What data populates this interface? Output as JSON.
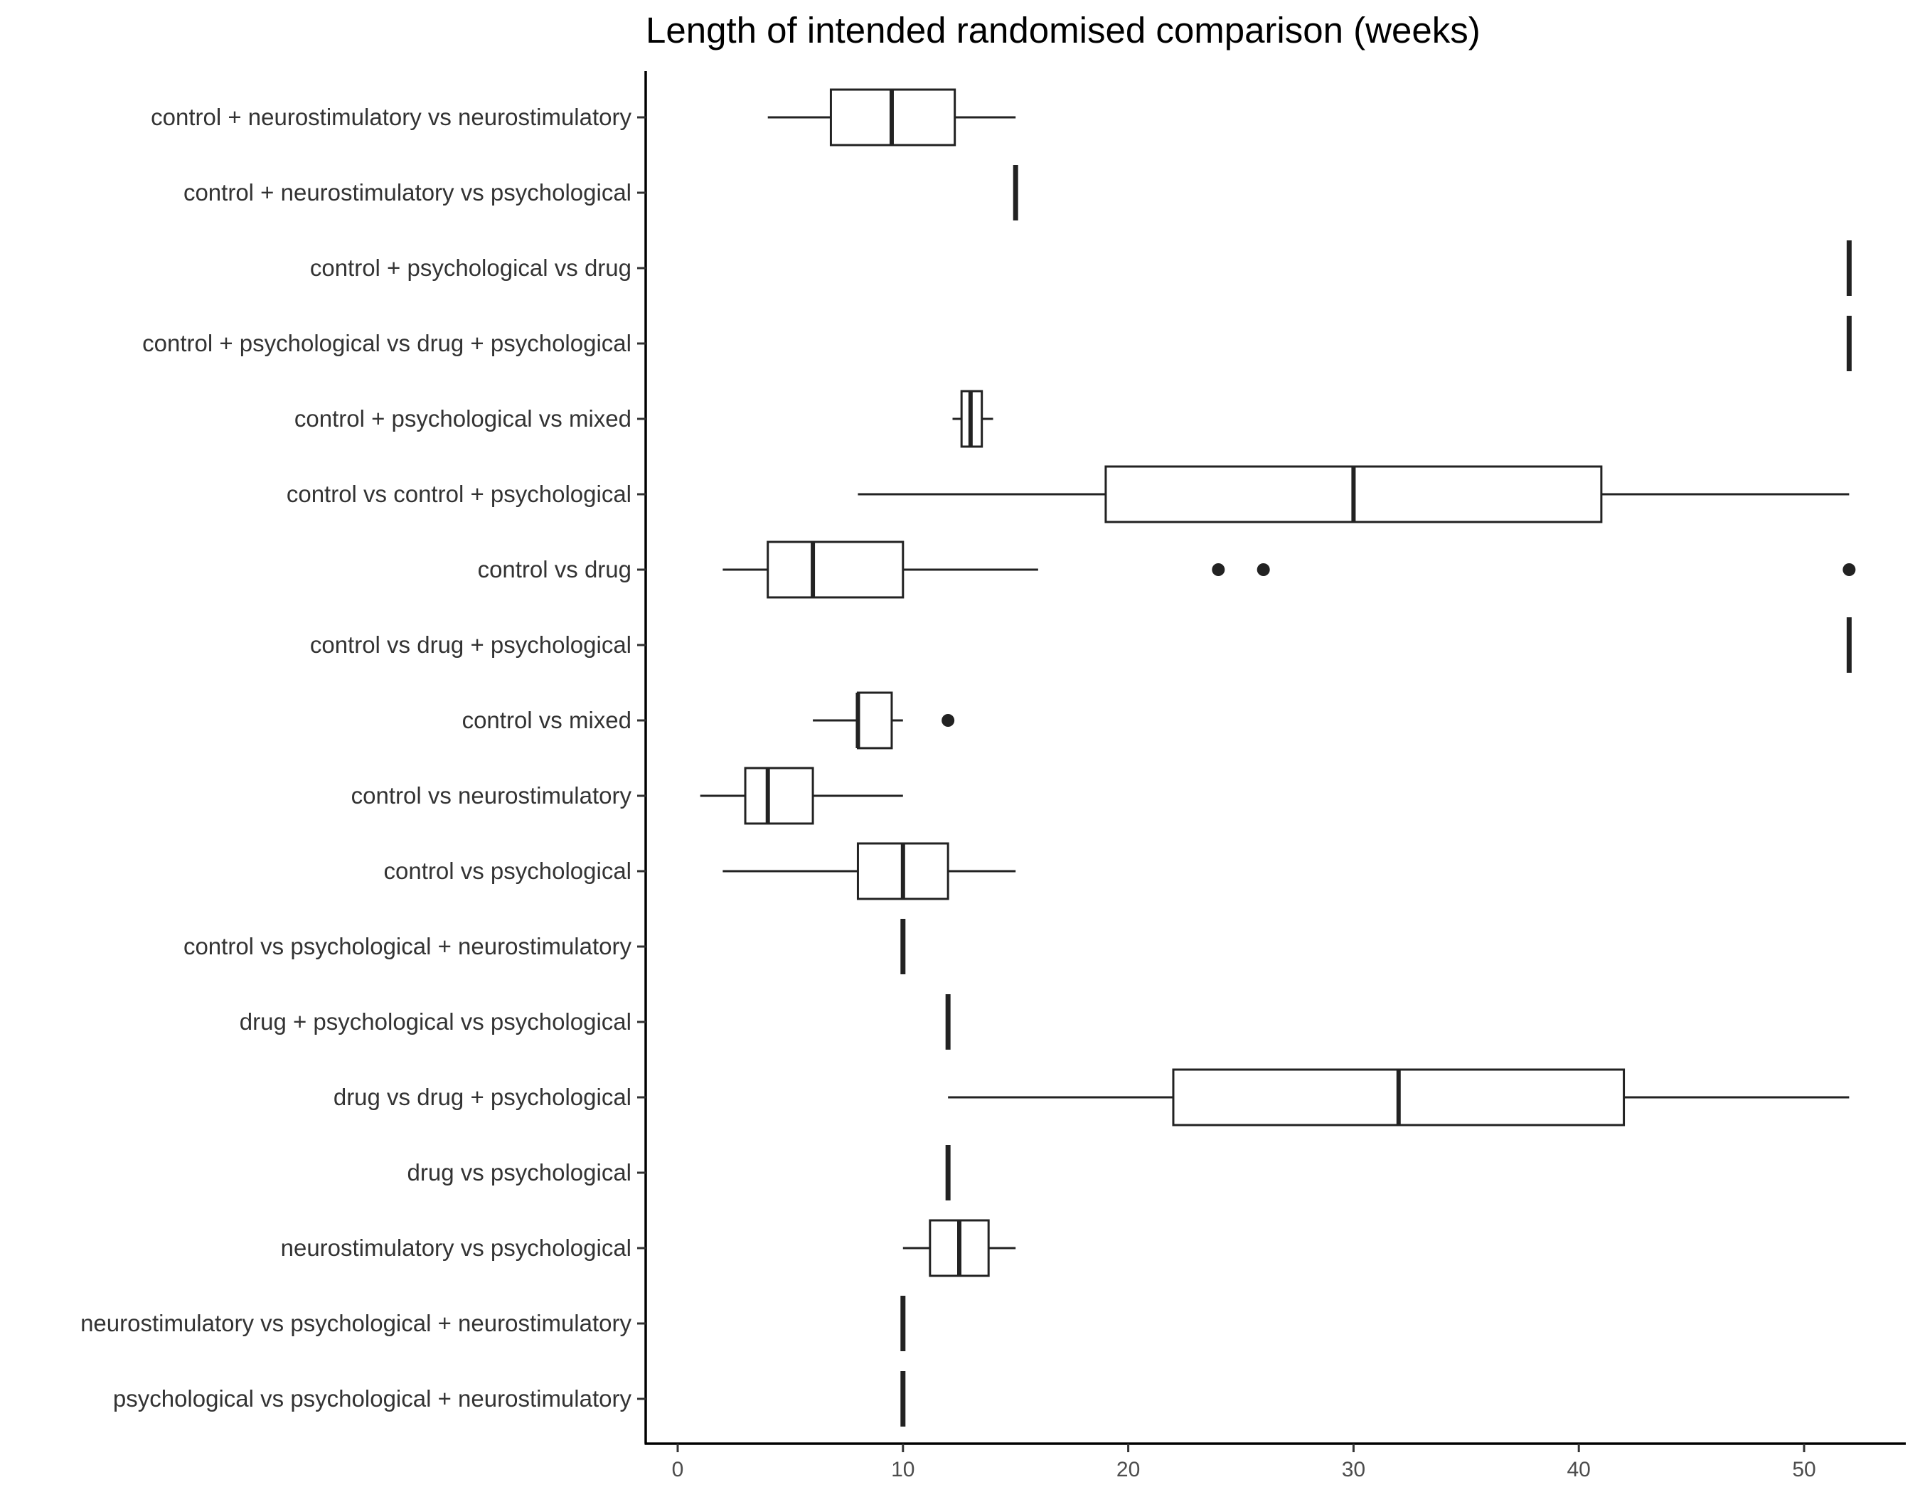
{
  "chart_data": {
    "type": "boxplot",
    "orientation": "horizontal",
    "title": "Length of intended randomised comparison (weeks)",
    "xlabel": "",
    "ylabel": "",
    "xlim": [
      -1.5,
      54.5
    ],
    "xticks": [
      0,
      10,
      20,
      30,
      40,
      50
    ],
    "grid": false,
    "legend": "none",
    "colors": {
      "stroke": "#222222",
      "fill": "#ffffff",
      "axis": "#000000",
      "text": "#333333"
    },
    "categories": [
      "control + neurostimulatory vs neurostimulatory",
      "control + neurostimulatory vs psychological",
      "control + psychological vs drug",
      "control + psychological vs drug + psychological",
      "control + psychological vs mixed",
      "control vs control + psychological",
      "control vs drug",
      "control vs drug + psychological",
      "control vs mixed",
      "control vs neurostimulatory",
      "control vs psychological",
      "control vs psychological + neurostimulatory",
      "drug + psychological vs psychological",
      "drug vs drug + psychological",
      "drug vs psychological",
      "neurostimulatory vs psychological",
      "neurostimulatory vs psychological + neurostimulatory",
      "psychological vs psychological + neurostimulatory"
    ],
    "boxes": [
      {
        "min": 4,
        "q1": 6.8,
        "median": 9.5,
        "q3": 12.3,
        "max": 15,
        "outliers": []
      },
      {
        "min": 15,
        "q1": 15,
        "median": 15,
        "q3": 15,
        "max": 15,
        "outliers": []
      },
      {
        "min": 52,
        "q1": 52,
        "median": 52,
        "q3": 52,
        "max": 52,
        "outliers": []
      },
      {
        "min": 52,
        "q1": 52,
        "median": 52,
        "q3": 52,
        "max": 52,
        "outliers": []
      },
      {
        "min": 12.2,
        "q1": 12.6,
        "median": 13,
        "q3": 13.5,
        "max": 14,
        "outliers": []
      },
      {
        "min": 8,
        "q1": 19,
        "median": 30,
        "q3": 41,
        "max": 52,
        "outliers": []
      },
      {
        "min": 2,
        "q1": 4,
        "median": 6,
        "q3": 10,
        "max": 16,
        "outliers": [
          24,
          26,
          52
        ]
      },
      {
        "min": 52,
        "q1": 52,
        "median": 52,
        "q3": 52,
        "max": 52,
        "outliers": []
      },
      {
        "min": 6,
        "q1": 8,
        "median": 8,
        "q3": 9.5,
        "max": 10,
        "outliers": [
          12
        ]
      },
      {
        "min": 1,
        "q1": 3,
        "median": 4,
        "q3": 6,
        "max": 10,
        "outliers": []
      },
      {
        "min": 2,
        "q1": 8,
        "median": 10,
        "q3": 12,
        "max": 15,
        "outliers": []
      },
      {
        "min": 10,
        "q1": 10,
        "median": 10,
        "q3": 10,
        "max": 10,
        "outliers": []
      },
      {
        "min": 12,
        "q1": 12,
        "median": 12,
        "q3": 12,
        "max": 12,
        "outliers": []
      },
      {
        "min": 12,
        "q1": 22,
        "median": 32,
        "q3": 42,
        "max": 52,
        "outliers": []
      },
      {
        "min": 12,
        "q1": 12,
        "median": 12,
        "q3": 12,
        "max": 12,
        "outliers": []
      },
      {
        "min": 10,
        "q1": 11.2,
        "median": 12.5,
        "q3": 13.8,
        "max": 15,
        "outliers": []
      },
      {
        "min": 10,
        "q1": 10,
        "median": 10,
        "q3": 10,
        "max": 10,
        "outliers": []
      },
      {
        "min": 10,
        "q1": 10,
        "median": 10,
        "q3": 10,
        "max": 10,
        "outliers": []
      }
    ]
  }
}
